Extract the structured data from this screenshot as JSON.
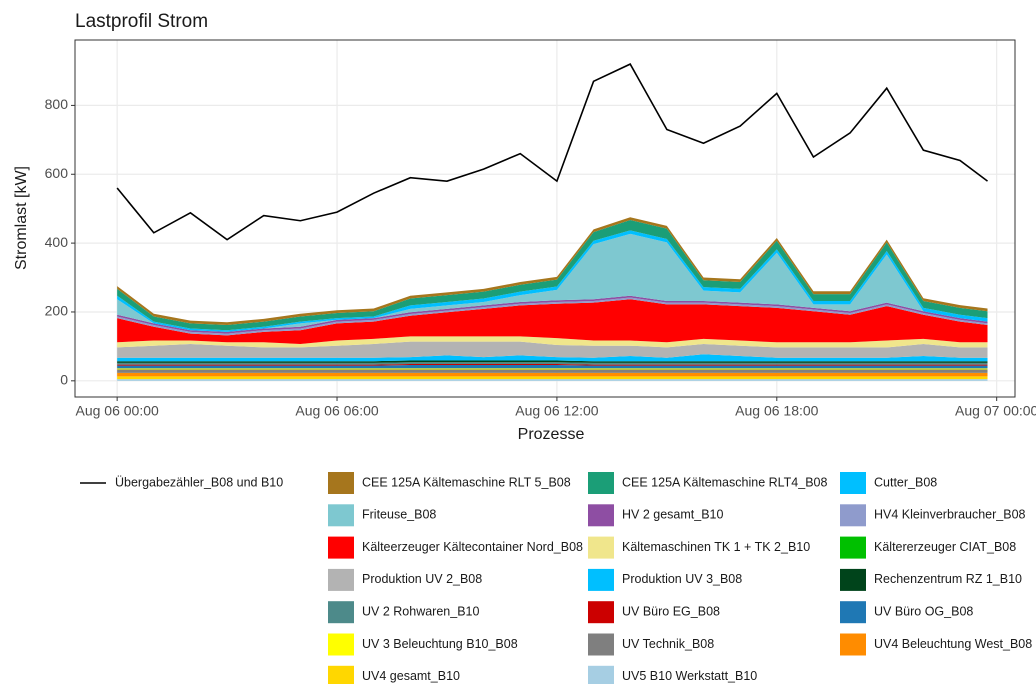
{
  "chart_data": {
    "type": "area",
    "title": "Lastprofil Strom",
    "xlabel": "Prozesse",
    "ylabel": "Stromlast [kW]",
    "x": [
      0,
      1,
      2,
      3,
      4,
      5,
      6,
      7,
      8,
      9,
      10,
      11,
      12,
      13,
      14,
      15,
      16,
      17,
      18,
      19,
      20,
      21,
      22,
      23,
      23.75
    ],
    "xlim": [
      -1.15,
      24.5
    ],
    "xticks": [
      {
        "value": 0,
        "label": "Aug 06 00:00"
      },
      {
        "value": 6,
        "label": "Aug 06 06:00"
      },
      {
        "value": 12,
        "label": "Aug 06 12:00"
      },
      {
        "value": 18,
        "label": "Aug 06 18:00"
      },
      {
        "value": 24,
        "label": "Aug 07 00:00"
      }
    ],
    "ylim": [
      -47,
      990
    ],
    "yticks": [
      0,
      200,
      400,
      600,
      800
    ],
    "grid": true,
    "series": [
      {
        "name": "Übergabezähler_B08 und B10",
        "type": "line",
        "color": "#000000",
        "values": [
          560,
          430,
          488,
          410,
          480,
          465,
          490,
          545,
          590,
          580,
          615,
          660,
          580,
          870,
          920,
          730,
          690,
          740,
          835,
          650,
          720,
          850,
          670,
          640,
          580
        ]
      },
      {
        "name": "CEE 125A Kältemaschine RLT 5_B08",
        "type": "area",
        "color": "#a6761d",
        "values": [
          8,
          8,
          8,
          8,
          8,
          8,
          8,
          8,
          8,
          8,
          8,
          8,
          8,
          8,
          8,
          8,
          8,
          8,
          8,
          8,
          8,
          8,
          8,
          8,
          8
        ]
      },
      {
        "name": "CEE 125A Kältemaschine RLT4_B08",
        "type": "area",
        "color": "#1b9e77",
        "values": [
          20,
          15,
          15,
          15,
          15,
          15,
          15,
          15,
          20,
          20,
          20,
          20,
          20,
          25,
          30,
          30,
          20,
          20,
          25,
          20,
          20,
          25,
          20,
          20,
          20
        ]
      },
      {
        "name": "Cutter_B08",
        "type": "area",
        "color": "#00bfff",
        "values": [
          10,
          5,
          5,
          5,
          5,
          5,
          5,
          5,
          10,
          10,
          10,
          10,
          10,
          10,
          10,
          10,
          10,
          10,
          10,
          10,
          10,
          10,
          10,
          10,
          10
        ]
      },
      {
        "name": "Friteuse_B08",
        "type": "area",
        "color": "#7ec8d0",
        "values": [
          45,
          0,
          0,
          0,
          0,
          10,
          0,
          0,
          10,
          10,
          10,
          20,
          30,
          160,
          180,
          170,
          30,
          30,
          150,
          10,
          20,
          140,
          0,
          0,
          0
        ]
      },
      {
        "name": "HV 2 gesamt_B10",
        "type": "area",
        "color": "#8e4ea3",
        "values": [
          5,
          5,
          5,
          5,
          5,
          5,
          5,
          5,
          5,
          5,
          5,
          5,
          5,
          5,
          5,
          5,
          5,
          5,
          5,
          5,
          5,
          5,
          5,
          5,
          5
        ]
      },
      {
        "name": "HV4 Kleinverbraucher_B08",
        "type": "area",
        "color": "#8f9bcc",
        "values": [
          5,
          5,
          5,
          5,
          5,
          5,
          5,
          5,
          5,
          5,
          5,
          5,
          5,
          5,
          5,
          5,
          5,
          5,
          5,
          5,
          5,
          5,
          5,
          5,
          5
        ]
      },
      {
        "name": "Kälteerzeuger Kältecontainer Nord_B08",
        "type": "area",
        "color": "#ff0000",
        "values": [
          70,
          40,
          20,
          20,
          30,
          40,
          50,
          50,
          60,
          70,
          80,
          90,
          100,
          110,
          120,
          110,
          100,
          100,
          100,
          90,
          80,
          100,
          70,
          60,
          50
        ]
      },
      {
        "name": "Kältemaschinen TK 1 + TK 2_B10",
        "type": "area",
        "color": "#f0e68c",
        "values": [
          15,
          15,
          10,
          10,
          15,
          10,
          15,
          15,
          15,
          15,
          15,
          15,
          20,
          15,
          15,
          15,
          15,
          15,
          15,
          15,
          15,
          20,
          15,
          15,
          15
        ]
      },
      {
        "name": "Kältererzeuger CIAT_B08",
        "type": "area",
        "color": "#00c000",
        "values": [
          0,
          0,
          0,
          0,
          0,
          0,
          0,
          0,
          0,
          0,
          0,
          0,
          0,
          0,
          0,
          0,
          0,
          0,
          0,
          0,
          0,
          0,
          0,
          0,
          0
        ]
      },
      {
        "name": "Produktion UV 2_B08",
        "type": "area",
        "color": "#b3b3b3",
        "values": [
          30,
          35,
          40,
          35,
          30,
          30,
          35,
          40,
          45,
          40,
          45,
          40,
          35,
          35,
          30,
          30,
          30,
          30,
          30,
          30,
          30,
          30,
          35,
          30,
          30
        ]
      },
      {
        "name": "Produktion UV 3_B08",
        "type": "area",
        "color": "#00bfff",
        "values": [
          10,
          10,
          10,
          10,
          10,
          10,
          10,
          10,
          10,
          15,
          10,
          15,
          10,
          10,
          15,
          10,
          20,
          15,
          10,
          10,
          10,
          10,
          15,
          10,
          10
        ]
      },
      {
        "name": "Rechenzentrum RZ 1_B10",
        "type": "area",
        "color": "#00441b",
        "values": [
          5,
          5,
          5,
          5,
          5,
          5,
          5,
          5,
          5,
          5,
          5,
          5,
          5,
          5,
          5,
          5,
          5,
          5,
          5,
          5,
          5,
          5,
          5,
          5,
          5
        ]
      },
      {
        "name": "UV 2 Rohwaren_B10",
        "type": "area",
        "color": "#4d8a8a",
        "values": [
          5,
          5,
          5,
          5,
          5,
          5,
          5,
          5,
          5,
          5,
          5,
          5,
          5,
          5,
          5,
          5,
          5,
          5,
          5,
          5,
          5,
          5,
          5,
          5,
          5
        ]
      },
      {
        "name": "UV Büro EG_B08",
        "type": "area",
        "color": "#cc0000",
        "values": [
          3,
          3,
          3,
          3,
          3,
          3,
          3,
          3,
          3,
          3,
          3,
          3,
          3,
          3,
          3,
          3,
          3,
          3,
          3,
          3,
          3,
          3,
          3,
          3,
          3
        ]
      },
      {
        "name": "UV Büro OG_B08",
        "type": "area",
        "color": "#1f78b4",
        "values": [
          8,
          8,
          8,
          8,
          8,
          8,
          8,
          8,
          10,
          10,
          10,
          10,
          10,
          8,
          8,
          8,
          8,
          8,
          8,
          8,
          8,
          8,
          8,
          8,
          8
        ]
      },
      {
        "name": "UV 3 Beleuchtung B10_B08",
        "type": "area",
        "color": "#ffff00",
        "values": [
          3,
          3,
          3,
          3,
          3,
          3,
          3,
          3,
          3,
          3,
          3,
          3,
          3,
          3,
          3,
          3,
          3,
          3,
          3,
          3,
          3,
          3,
          3,
          3,
          3
        ]
      },
      {
        "name": "UV Technik_B08",
        "type": "area",
        "color": "#7f7f7f",
        "values": [
          10,
          10,
          10,
          10,
          10,
          10,
          10,
          10,
          10,
          10,
          10,
          10,
          10,
          10,
          10,
          10,
          10,
          10,
          10,
          10,
          10,
          10,
          10,
          10,
          10
        ]
      },
      {
        "name": "UV4 Beleuchtung West_B08",
        "type": "area",
        "color": "#ff8c00",
        "values": [
          10,
          10,
          10,
          10,
          10,
          10,
          10,
          10,
          10,
          10,
          10,
          10,
          10,
          10,
          10,
          10,
          10,
          10,
          10,
          10,
          10,
          10,
          10,
          10,
          10
        ]
      },
      {
        "name": "UV4 gesamt_B10",
        "type": "area",
        "color": "#ffd700",
        "values": [
          8,
          8,
          8,
          8,
          8,
          8,
          8,
          8,
          8,
          8,
          8,
          8,
          8,
          8,
          8,
          8,
          8,
          8,
          8,
          8,
          8,
          8,
          8,
          8,
          8
        ]
      },
      {
        "name": "UV5 B10 Werkstatt_B10",
        "type": "area",
        "color": "#a6cee3",
        "values": [
          5,
          5,
          5,
          5,
          5,
          5,
          5,
          5,
          5,
          5,
          5,
          5,
          5,
          5,
          5,
          5,
          5,
          5,
          5,
          5,
          5,
          5,
          5,
          5,
          5
        ]
      }
    ]
  }
}
